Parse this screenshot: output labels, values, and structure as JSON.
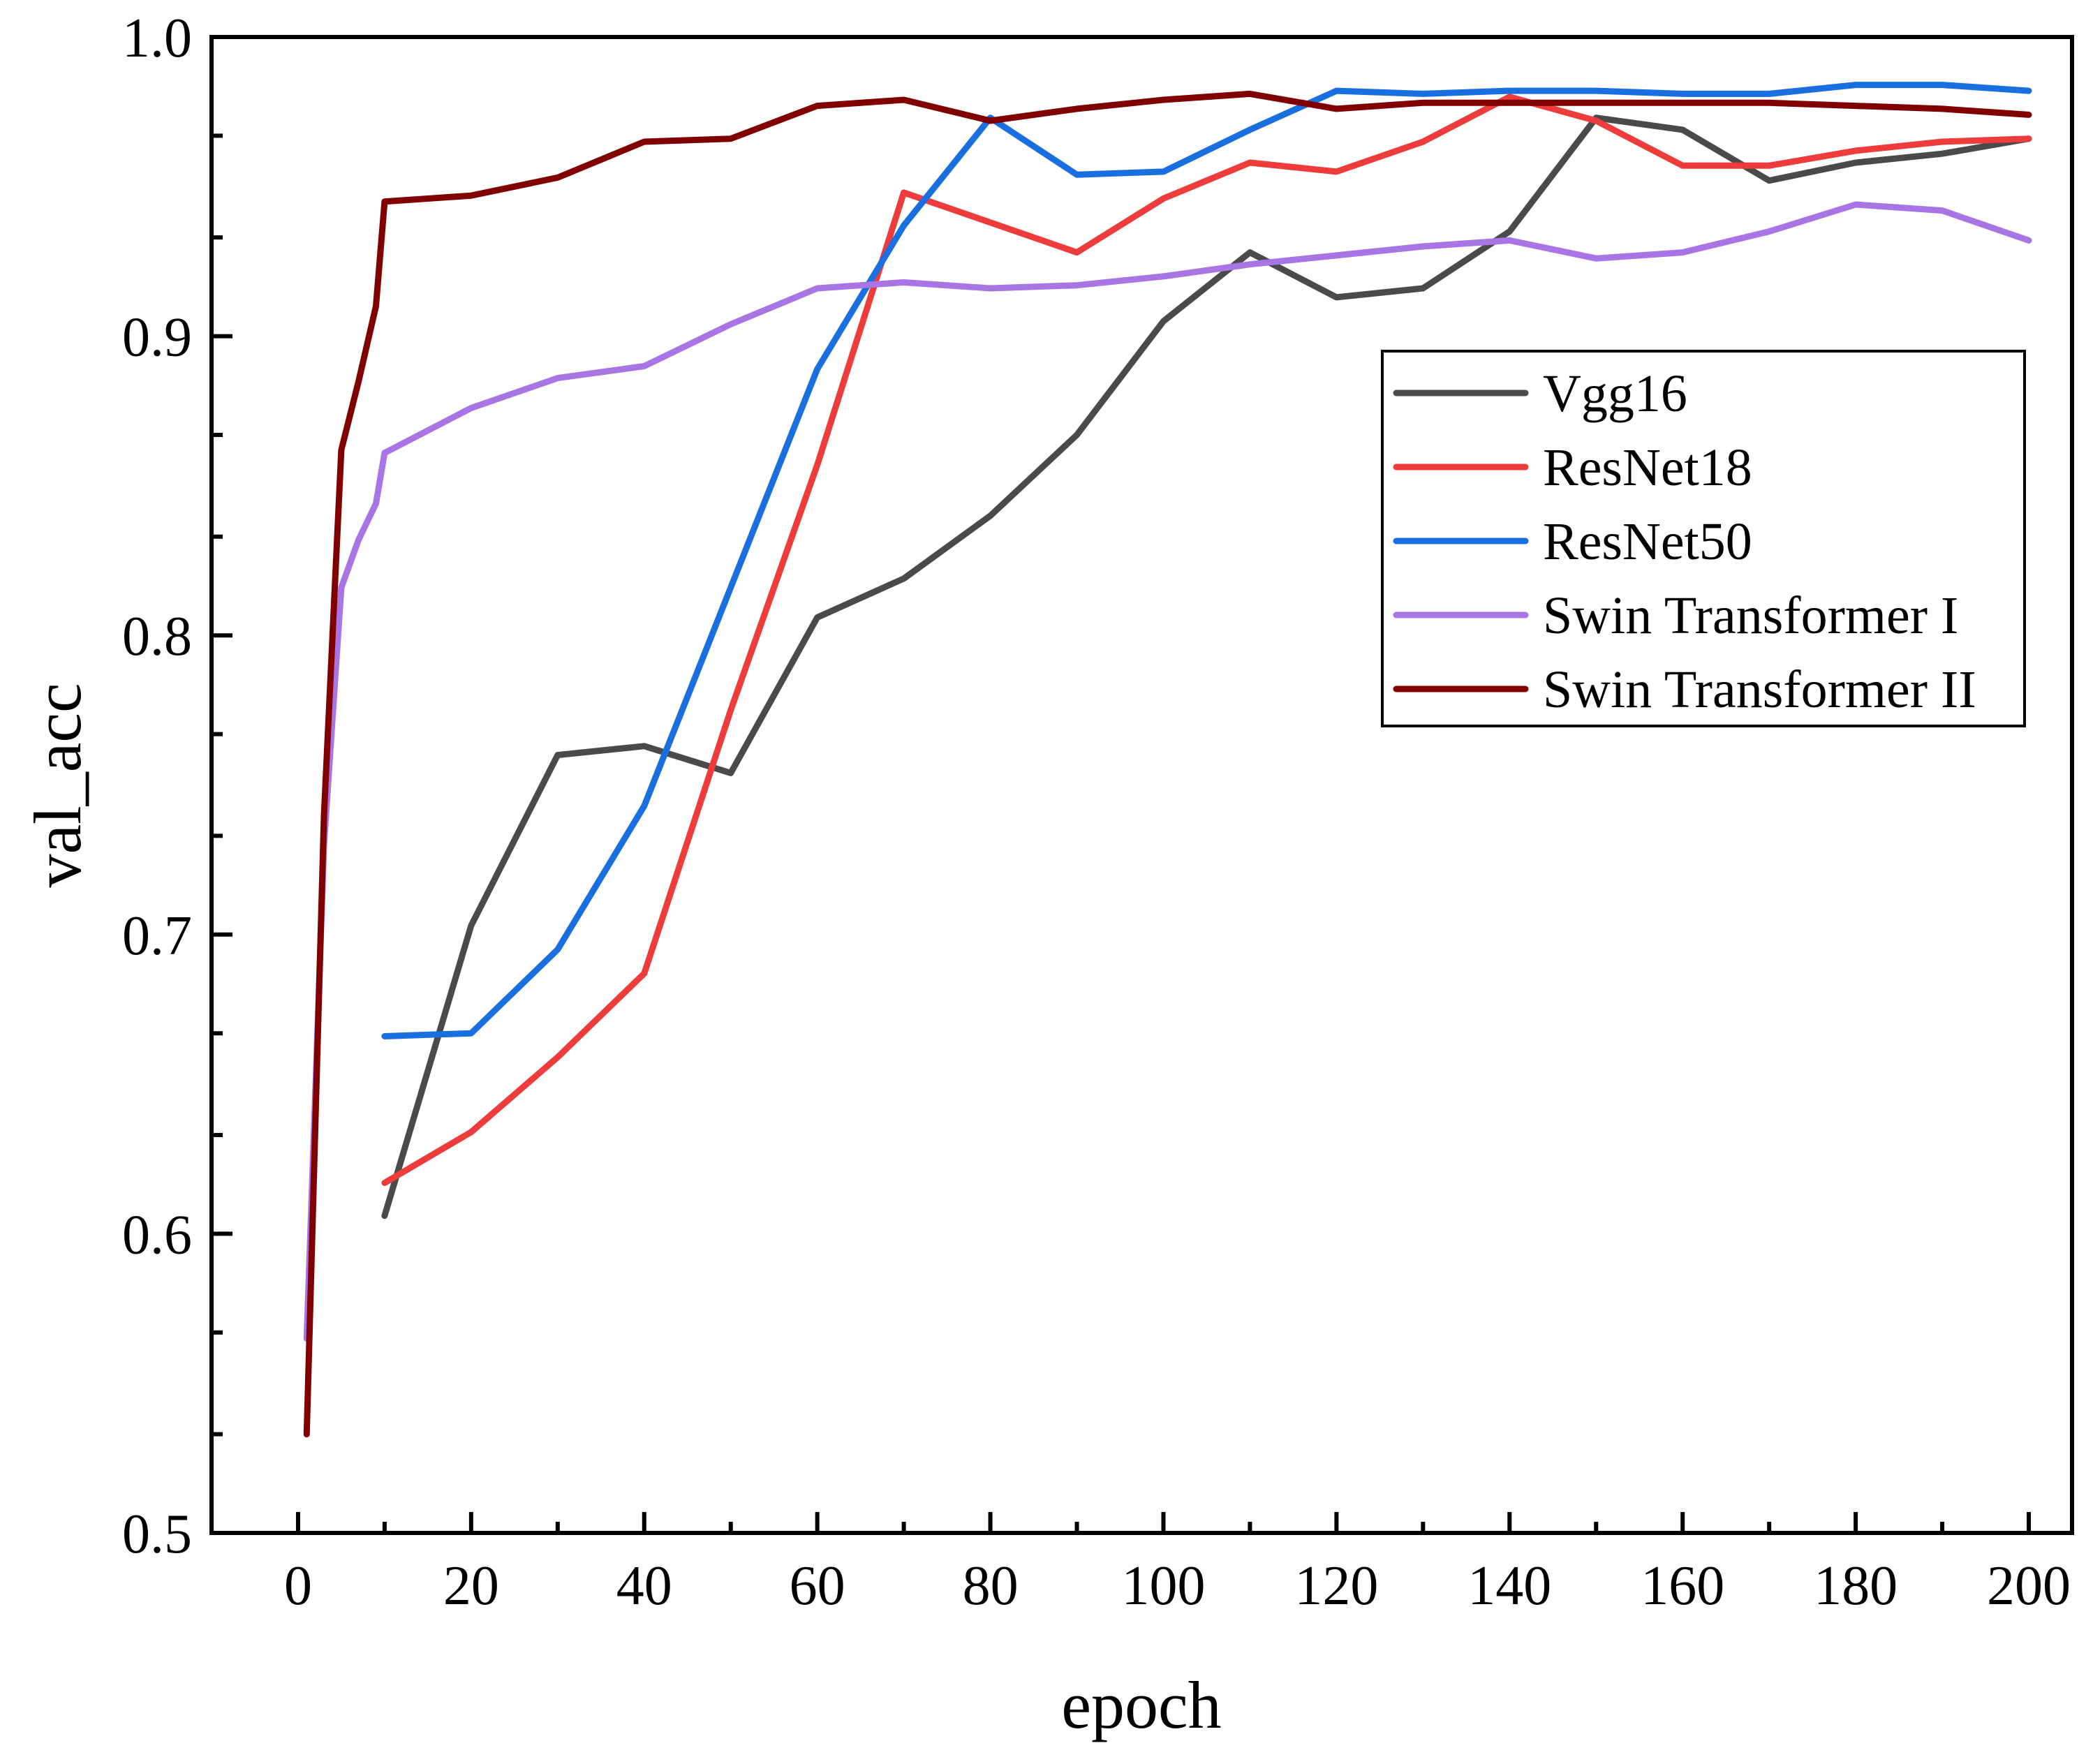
{
  "chart_data": {
    "type": "line",
    "title": "",
    "xlabel": "epoch",
    "ylabel": "val_acc",
    "xlim": [
      -10,
      205
    ],
    "ylim": [
      0.5,
      1.0
    ],
    "xticks": [
      0,
      20,
      40,
      60,
      80,
      100,
      120,
      140,
      160,
      180,
      200
    ],
    "xtick_labels": [
      "0",
      "20",
      "40",
      "60",
      "80",
      "100",
      "120",
      "140",
      "160",
      "180",
      "200"
    ],
    "xminor": [
      10,
      30,
      50,
      70,
      90,
      110,
      130,
      150,
      170,
      190
    ],
    "yticks": [
      0.5,
      0.6,
      0.7,
      0.8,
      0.9,
      1.0
    ],
    "ytick_labels": [
      "0.5",
      "0.6",
      "0.7",
      "0.8",
      "0.9",
      "1.0"
    ],
    "yminor": [
      0.533,
      0.567,
      0.633,
      0.667,
      0.733,
      0.767,
      0.833,
      0.867,
      0.933,
      0.967
    ],
    "legend_position": "upper-right",
    "series": [
      {
        "name": "Vgg16",
        "color": "#4a4a4a",
        "x": [
          10,
          20,
          30,
          40,
          50,
          60,
          70,
          80,
          90,
          100,
          110,
          120,
          130,
          140,
          150,
          160,
          170,
          180,
          190,
          200
        ],
        "y": [
          0.606,
          0.703,
          0.76,
          0.763,
          0.754,
          0.806,
          0.819,
          0.84,
          0.867,
          0.905,
          0.928,
          0.913,
          0.916,
          0.935,
          0.973,
          0.969,
          0.952,
          0.958,
          0.961,
          0.966
        ]
      },
      {
        "name": "ResNet18",
        "color": "#ee3b3b",
        "x": [
          10,
          20,
          30,
          40,
          50,
          60,
          70,
          80,
          90,
          100,
          110,
          120,
          130,
          140,
          150,
          160,
          170,
          180,
          190,
          200
        ],
        "y": [
          0.617,
          0.634,
          0.659,
          0.687,
          0.775,
          0.857,
          0.948,
          0.938,
          0.928,
          0.946,
          0.958,
          0.955,
          0.965,
          0.98,
          0.972,
          0.957,
          0.957,
          0.962,
          0.965,
          0.966
        ]
      },
      {
        "name": "ResNet50",
        "color": "#1a6fe0",
        "x": [
          10,
          20,
          30,
          40,
          50,
          60,
          70,
          80,
          90,
          100,
          110,
          120,
          130,
          140,
          150,
          160,
          170,
          180,
          190,
          200
        ],
        "y": [
          0.666,
          0.667,
          0.695,
          0.743,
          0.816,
          0.889,
          0.937,
          0.973,
          0.954,
          0.955,
          0.969,
          0.982,
          0.981,
          0.982,
          0.982,
          0.981,
          0.981,
          0.984,
          0.984,
          0.982
        ]
      },
      {
        "name": "Swin Transformer I",
        "color": "#a974e3",
        "x": [
          1,
          3,
          5,
          7,
          9,
          10,
          20,
          30,
          40,
          50,
          60,
          70,
          80,
          90,
          100,
          110,
          120,
          130,
          140,
          150,
          160,
          170,
          180,
          190,
          200
        ],
        "y": [
          0.565,
          0.73,
          0.816,
          0.832,
          0.844,
          0.861,
          0.876,
          0.886,
          0.89,
          0.904,
          0.916,
          0.918,
          0.916,
          0.917,
          0.92,
          0.924,
          0.927,
          0.93,
          0.932,
          0.926,
          0.928,
          0.935,
          0.944,
          0.942,
          0.932
        ]
      },
      {
        "name": "Swin Transformer II",
        "color": "#800000",
        "x": [
          1,
          3,
          5,
          7,
          9,
          10,
          20,
          30,
          40,
          50,
          60,
          70,
          80,
          90,
          100,
          110,
          120,
          130,
          140,
          150,
          160,
          170,
          180,
          190,
          200
        ],
        "y": [
          0.533,
          0.74,
          0.862,
          0.885,
          0.91,
          0.945,
          0.947,
          0.953,
          0.965,
          0.966,
          0.977,
          0.979,
          0.972,
          0.976,
          0.979,
          0.981,
          0.976,
          0.978,
          0.978,
          0.978,
          0.978,
          0.978,
          0.977,
          0.976,
          0.974
        ]
      }
    ]
  }
}
